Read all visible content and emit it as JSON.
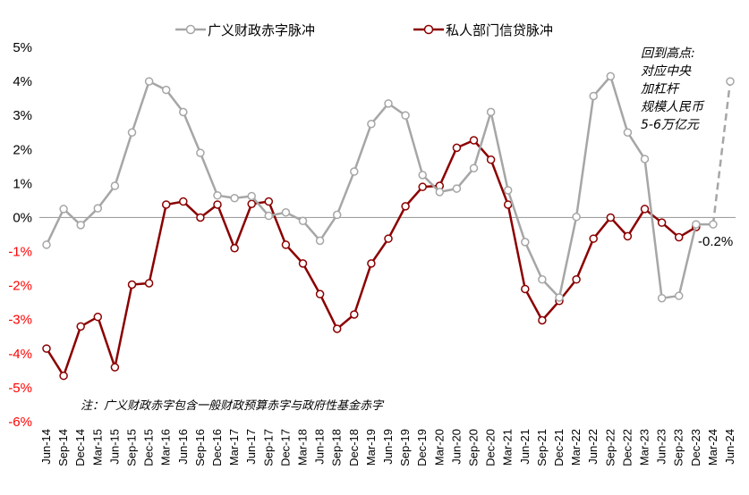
{
  "chart_data": {
    "type": "line",
    "x": [
      "Jun-14",
      "Sep-14",
      "Dec-14",
      "Mar-15",
      "Jun-15",
      "Sep-15",
      "Dec-15",
      "Mar-16",
      "Jun-16",
      "Sep-16",
      "Dec-16",
      "Mar-17",
      "Jun-17",
      "Sep-17",
      "Dec-17",
      "Mar-18",
      "Jun-18",
      "Sep-18",
      "Dec-18",
      "Mar-19",
      "Jun-19",
      "Sep-19",
      "Dec-19",
      "Mar-20",
      "Jun-20",
      "Sep-20",
      "Dec-20",
      "Mar-21",
      "Jun-21",
      "Sep-21",
      "Dec-21",
      "Mar-22",
      "Jun-22",
      "Sep-22",
      "Dec-22",
      "Mar-23",
      "Jun-23",
      "Sep-23",
      "Dec-23",
      "Mar-24",
      "Jun-24"
    ],
    "x_tick_labels": [
      "Jun-14",
      "Sep-14",
      "Dec-14",
      "Mar-15",
      "Jun-15",
      "Sep-15",
      "Dec-15",
      "Mar-16",
      "Jun-16",
      "Sep-16",
      "Dec-16",
      "Mar-17",
      "Jun-17",
      "Sep-17",
      "Dec-17",
      "Mar-18",
      "Jun-18",
      "Sep-18",
      "Dec-18",
      "Mar-19",
      "Jun-19",
      "Sep-19",
      "Dec-19",
      "Mar-20",
      "Jun-20",
      "Sep-20",
      "Dec-20",
      "Mar-21",
      "Jun-21",
      "Sep-21",
      "Dec-21",
      "Mar-22",
      "Jun-22",
      "Sep-22",
      "Dec-22",
      "Mar-23",
      "Jun-23",
      "Sep-23",
      "Dec-23",
      "Mar-24",
      "Jun-24"
    ],
    "y_tick_labels": [
      "5%",
      "4%",
      "3%",
      "2%",
      "1%",
      "0%",
      "-1%",
      "-2%",
      "-3%",
      "-4%",
      "-5%",
      "-6%"
    ],
    "ylim": [
      -6,
      5
    ],
    "y_unit": "%",
    "series": [
      {
        "name": "广义财政赤字脉冲",
        "color": "#a6a6a6",
        "marker_fill": "#ffffff",
        "values": [
          -0.8,
          0.25,
          -0.22,
          0.27,
          0.93,
          2.5,
          4.0,
          3.75,
          3.1,
          1.9,
          0.65,
          0.57,
          0.63,
          0.05,
          0.15,
          -0.1,
          -0.68,
          0.08,
          1.35,
          2.75,
          3.35,
          3.0,
          1.25,
          0.75,
          0.85,
          1.45,
          3.1,
          0.8,
          -0.72,
          -1.82,
          -2.35,
          0.02,
          3.57,
          4.15,
          2.5,
          1.72,
          -2.37,
          -2.3,
          -0.2,
          -0.2,
          null
        ],
        "projection": {
          "from": "Mar-24",
          "to": "Jun-24",
          "from_value": -0.2,
          "to_value": 4.0,
          "style": "dashed"
        }
      },
      {
        "name": "私人部门信贷脉冲",
        "color": "#8b0000",
        "marker_fill": "#ffffff",
        "values": [
          -3.85,
          -4.65,
          -3.2,
          -2.92,
          -4.4,
          -1.97,
          -1.93,
          0.38,
          0.47,
          0.0,
          0.38,
          -0.9,
          0.4,
          0.47,
          -0.8,
          -1.35,
          -2.25,
          -3.27,
          -2.85,
          -1.35,
          -0.62,
          0.33,
          0.9,
          0.93,
          2.05,
          2.27,
          1.7,
          0.38,
          -2.1,
          -3.02,
          -2.45,
          -1.82,
          -0.62,
          0.0,
          -0.55,
          0.25,
          -0.15,
          -0.58,
          -0.28,
          null,
          null
        ]
      }
    ],
    "annotations": [
      {
        "text_lines": [
          "回到高点:",
          "对应中央",
          "加杠杆",
          "规模人民币",
          "5-6万亿元"
        ],
        "anchor": "Jun-24"
      },
      {
        "text": "-0.2%",
        "anchor": "Mar-24"
      }
    ],
    "note": "注：广义财政赤字包含一般财政预算赤字与政府性基金赤字",
    "legend_position": "top",
    "grid": false
  }
}
